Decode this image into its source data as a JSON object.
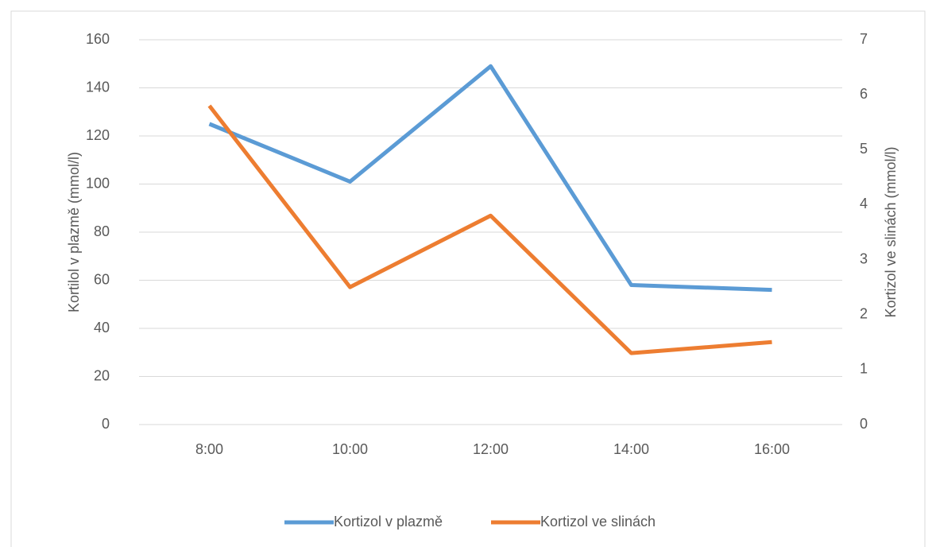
{
  "chart_data": {
    "type": "line",
    "categories": [
      "8:00",
      "10:00",
      "12:00",
      "14:00",
      "16:00"
    ],
    "series": [
      {
        "name": "Kortizol v plazmě",
        "color": "#5b9bd5",
        "values": [
          125,
          101,
          149,
          58,
          56
        ]
      },
      {
        "name": "Kortizol ve slinách",
        "color": "#ed7d31",
        "values": [
          5.8,
          2.5,
          3.8,
          1.3,
          1.5
        ],
        "axis": "y2"
      }
    ],
    "y_label": "Kortilol v plazmě (mmol/l)",
    "y2_label": "Kortizol ve slinách (mmol/l)",
    "ylim": [
      0,
      160
    ],
    "yticks": [
      0,
      20,
      40,
      60,
      80,
      100,
      120,
      140,
      160
    ],
    "y2lim": [
      0,
      7
    ],
    "y2ticks": [
      0,
      1,
      2,
      3,
      4,
      5,
      6,
      7
    ],
    "grid": true,
    "legend": "bottom"
  }
}
